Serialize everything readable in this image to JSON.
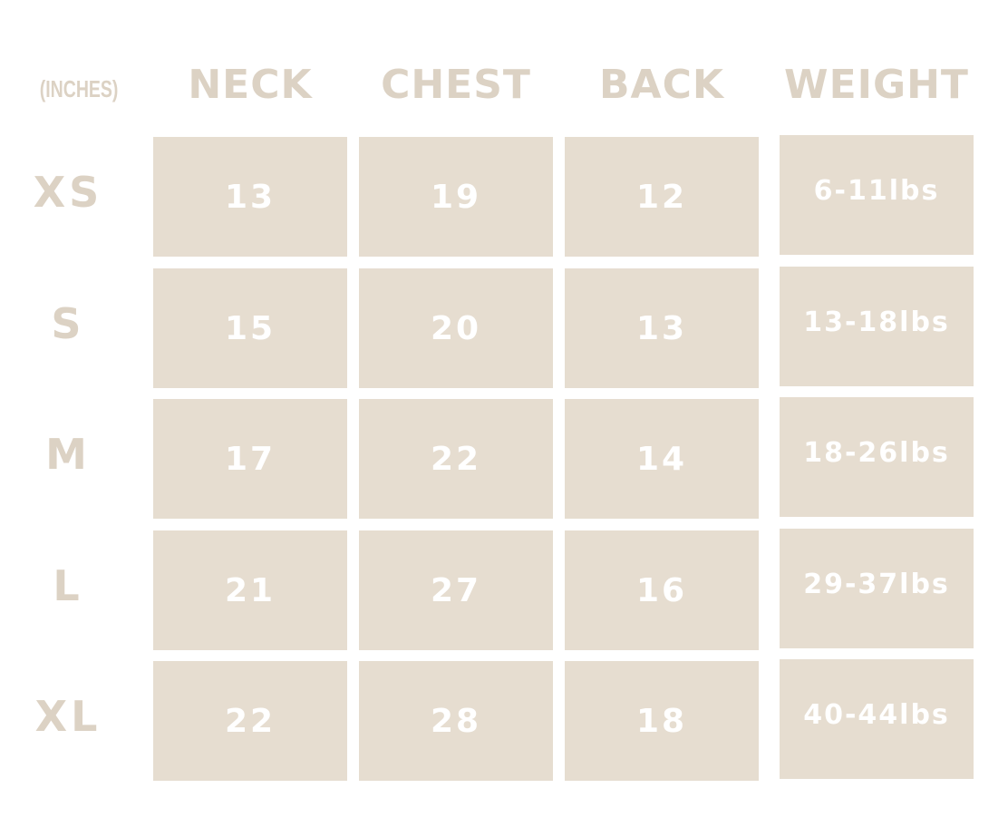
{
  "table": {
    "units_label": "(INCHES)",
    "columns": [
      "NECK",
      "CHEST",
      "BACK",
      "WEIGHT"
    ],
    "rows": [
      {
        "size": "XS",
        "values": [
          "13",
          "19",
          "12",
          "6-11lbs"
        ]
      },
      {
        "size": "S",
        "values": [
          "15",
          "20",
          "13",
          "13-18lbs"
        ]
      },
      {
        "size": "M",
        "values": [
          "17",
          "22",
          "14",
          "18-26lbs"
        ]
      },
      {
        "size": "L",
        "values": [
          "21",
          "27",
          "16",
          "29-37lbs"
        ]
      },
      {
        "size": "XL",
        "values": [
          "22",
          "28",
          "18",
          "40-44lbs"
        ]
      }
    ]
  },
  "colors": {
    "header_text": "#dcd2c4",
    "cell_fill": "#e6ddd0",
    "cell_text": "#ffffff"
  }
}
